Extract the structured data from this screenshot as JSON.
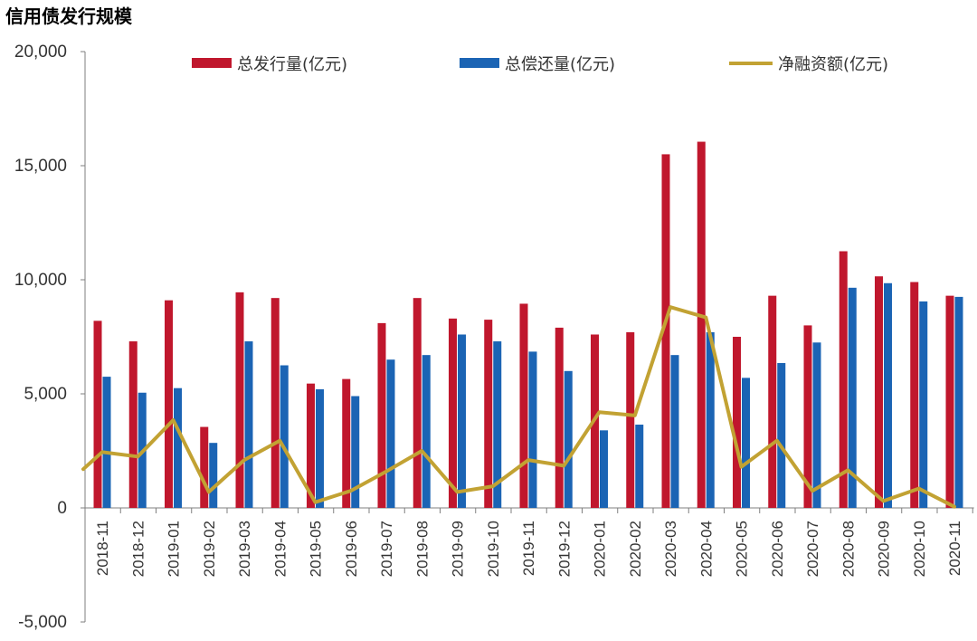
{
  "chart_data": {
    "type": "bar+line",
    "title": "信用债发行规模",
    "categories": [
      "2018-11",
      "2018-12",
      "2019-01",
      "2019-02",
      "2019-03",
      "2019-04",
      "2019-05",
      "2019-06",
      "2019-07",
      "2019-08",
      "2019-09",
      "2019-10",
      "2019-11",
      "2019-12",
      "2020-01",
      "2020-02",
      "2020-03",
      "2020-04",
      "2020-05",
      "2020-06",
      "2020-07",
      "2020-08",
      "2020-09",
      "2020-10",
      "2020-11"
    ],
    "ylim": [
      -5000,
      20000
    ],
    "yticks": [
      -5000,
      0,
      5000,
      10000,
      15000,
      20000
    ],
    "ytick_labels": [
      "-5,000",
      "0",
      "5,000",
      "10,000",
      "15,000",
      "20,000"
    ],
    "series": [
      {
        "name": "总发行量(亿元)",
        "type": "bar",
        "color": "#C0172D",
        "values": [
          8200,
          7300,
          9100,
          3550,
          9450,
          9200,
          5450,
          5650,
          8100,
          9200,
          8300,
          8250,
          8950,
          7900,
          7600,
          7700,
          15500,
          16050,
          7500,
          9300,
          8000,
          11250,
          10150,
          9900,
          9300
        ]
      },
      {
        "name": "总偿还量(亿元)",
        "type": "bar",
        "color": "#1B64B4",
        "values": [
          5750,
          5050,
          5250,
          2850,
          7300,
          6250,
          5200,
          4900,
          6500,
          6700,
          7600,
          7300,
          6850,
          6000,
          3400,
          3650,
          6700,
          7700,
          5700,
          6350,
          7250,
          9650,
          9850,
          9050,
          9250
        ]
      },
      {
        "name": "净融资额(亿元)",
        "type": "line",
        "color": "#C2A233",
        "values": [
          2450,
          2250,
          3850,
          700,
          2100,
          2950,
          250,
          750,
          1600,
          2500,
          700,
          950,
          2100,
          1850,
          4200,
          4050,
          8800,
          8350,
          1800,
          2950,
          750,
          1650,
          300,
          850,
          50
        ]
      }
    ],
    "line_start_value": 1700,
    "legend_position": "top",
    "xlabel": "",
    "ylabel": ""
  }
}
